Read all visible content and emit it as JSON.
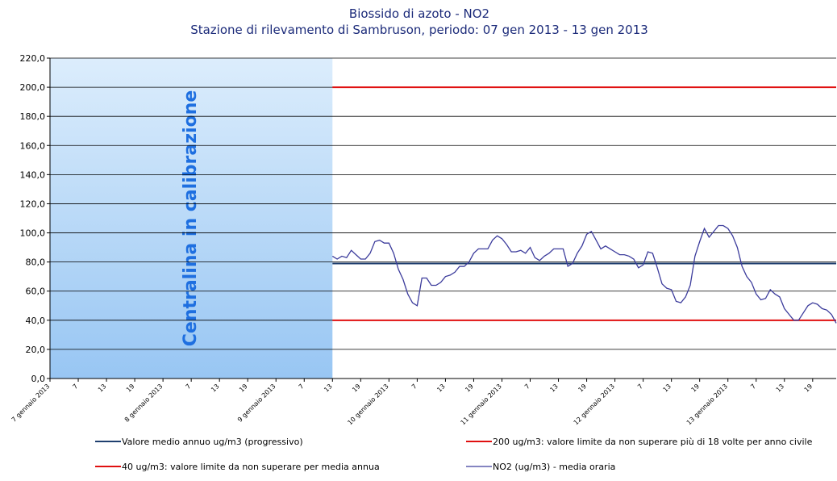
{
  "chart_data": {
    "type": "line",
    "title": "Biossido di azoto - NO2",
    "subtitle": "Stazione di rilevamento di Sambruson, periodo: 07 gen 2013 - 13 gen 2013",
    "annotation": "Centralina in calibrazione",
    "ylim": [
      0,
      220
    ],
    "yticks": [
      {
        "value": 0,
        "label": "0,0"
      },
      {
        "value": 20,
        "label": "20,0"
      },
      {
        "value": 40,
        "label": "40,0"
      },
      {
        "value": 60,
        "label": "60,0"
      },
      {
        "value": 80,
        "label": "80,0"
      },
      {
        "value": 100,
        "label": "100,0"
      },
      {
        "value": 120,
        "label": "120,0"
      },
      {
        "value": 140,
        "label": "140,0"
      },
      {
        "value": 160,
        "label": "160,0"
      },
      {
        "value": 180,
        "label": "180,0"
      },
      {
        "value": 200,
        "label": "200,0"
      },
      {
        "value": 220,
        "label": "220,0"
      }
    ],
    "grid": true,
    "categories": [
      "7 gennaio 2013",
      null,
      null,
      null,
      null,
      null,
      "7",
      null,
      null,
      null,
      null,
      null,
      "13",
      null,
      null,
      null,
      null,
      null,
      "19",
      null,
      null,
      null,
      null,
      null,
      "8 gennaio 2013",
      null,
      null,
      null,
      null,
      null,
      "7",
      null,
      null,
      null,
      null,
      null,
      "13",
      null,
      null,
      null,
      null,
      null,
      "19",
      null,
      null,
      null,
      null,
      null,
      "9 gennaio 2013",
      null,
      null,
      null,
      null,
      null,
      "7",
      null,
      null,
      null,
      null,
      null,
      "13",
      null,
      null,
      null,
      null,
      null,
      "19",
      null,
      null,
      null,
      null,
      null,
      "10 gennaio 2013",
      null,
      null,
      null,
      null,
      null,
      "7",
      null,
      null,
      null,
      null,
      null,
      "13",
      null,
      null,
      null,
      null,
      null,
      "19",
      null,
      null,
      null,
      null,
      null,
      "11 gennaio 2013",
      null,
      null,
      null,
      null,
      null,
      "7",
      null,
      null,
      null,
      null,
      null,
      "13",
      null,
      null,
      null,
      null,
      null,
      "19",
      null,
      null,
      null,
      null,
      null,
      "12 gennaio 2013",
      null,
      null,
      null,
      null,
      null,
      "7",
      null,
      null,
      null,
      null,
      null,
      "13",
      null,
      null,
      null,
      null,
      null,
      "19",
      null,
      null,
      null,
      null,
      null,
      "13 gennaio 2013",
      null,
      null,
      null,
      null,
      null,
      "7",
      null,
      null,
      null,
      null,
      null,
      "13",
      null,
      null,
      null,
      null,
      null,
      "19",
      null,
      null,
      null,
      null,
      null
    ],
    "series": [
      {
        "name": "Valore medio annuo ug/m3 (progressivo)",
        "color": "#1f3f6f",
        "values": [
          null,
          null,
          null,
          null,
          null,
          null,
          null,
          null,
          null,
          null,
          null,
          null,
          null,
          null,
          null,
          null,
          null,
          null,
          null,
          null,
          null,
          null,
          null,
          null,
          null,
          null,
          null,
          null,
          null,
          null,
          null,
          null,
          null,
          null,
          null,
          null,
          null,
          null,
          null,
          null,
          null,
          null,
          null,
          null,
          null,
          null,
          null,
          null,
          null,
          null,
          null,
          null,
          null,
          null,
          null,
          null,
          null,
          null,
          null,
          null,
          79,
          79,
          79,
          79,
          79,
          79,
          79,
          79,
          79,
          79,
          79,
          79,
          79,
          79,
          79,
          79,
          79,
          79,
          79,
          79,
          79,
          79,
          79,
          79,
          79,
          79,
          79,
          79,
          79,
          79,
          79,
          79,
          79,
          79,
          79,
          79,
          79,
          79,
          79,
          79,
          79,
          79,
          79,
          79,
          79,
          79,
          79,
          79,
          79,
          79,
          79,
          79,
          79,
          79,
          79,
          79,
          79,
          79,
          79,
          79,
          79,
          79,
          79,
          79,
          79,
          79,
          79,
          79,
          79,
          79,
          79,
          79,
          79,
          79,
          79,
          79,
          79,
          79,
          79,
          79,
          79,
          79,
          79,
          79,
          79,
          79,
          79,
          79,
          79,
          79,
          79,
          79,
          79,
          79,
          79,
          79,
          79,
          79,
          79,
          79,
          79,
          79,
          79,
          79,
          79,
          79,
          79,
          79
        ]
      },
      {
        "name": "200 ug/m3: valore limite da non superare più di 18 volte per anno civile",
        "color": "#e01010",
        "values": [
          null,
          null,
          null,
          null,
          null,
          null,
          null,
          null,
          null,
          null,
          null,
          null,
          null,
          null,
          null,
          null,
          null,
          null,
          null,
          null,
          null,
          null,
          null,
          null,
          null,
          null,
          null,
          null,
          null,
          null,
          null,
          null,
          null,
          null,
          null,
          null,
          null,
          null,
          null,
          null,
          null,
          null,
          null,
          null,
          null,
          null,
          null,
          null,
          null,
          null,
          null,
          null,
          null,
          null,
          null,
          null,
          null,
          null,
          null,
          null,
          200,
          200,
          200,
          200,
          200,
          200,
          200,
          200,
          200,
          200,
          200,
          200,
          200,
          200,
          200,
          200,
          200,
          200,
          200,
          200,
          200,
          200,
          200,
          200,
          200,
          200,
          200,
          200,
          200,
          200,
          200,
          200,
          200,
          200,
          200,
          200,
          200,
          200,
          200,
          200,
          200,
          200,
          200,
          200,
          200,
          200,
          200,
          200,
          200,
          200,
          200,
          200,
          200,
          200,
          200,
          200,
          200,
          200,
          200,
          200,
          200,
          200,
          200,
          200,
          200,
          200,
          200,
          200,
          200,
          200,
          200,
          200,
          200,
          200,
          200,
          200,
          200,
          200,
          200,
          200,
          200,
          200,
          200,
          200,
          200,
          200,
          200,
          200,
          200,
          200,
          200,
          200,
          200,
          200,
          200,
          200,
          200,
          200,
          200,
          200,
          200,
          200,
          200,
          200,
          200,
          200,
          200,
          200
        ]
      },
      {
        "name": "40 ug/m3: valore limite da non superare per media annua",
        "color": "#e01010",
        "values": [
          null,
          null,
          null,
          null,
          null,
          null,
          null,
          null,
          null,
          null,
          null,
          null,
          null,
          null,
          null,
          null,
          null,
          null,
          null,
          null,
          null,
          null,
          null,
          null,
          null,
          null,
          null,
          null,
          null,
          null,
          null,
          null,
          null,
          null,
          null,
          null,
          null,
          null,
          null,
          null,
          null,
          null,
          null,
          null,
          null,
          null,
          null,
          null,
          null,
          null,
          null,
          null,
          null,
          null,
          null,
          null,
          null,
          null,
          null,
          null,
          40,
          40,
          40,
          40,
          40,
          40,
          40,
          40,
          40,
          40,
          40,
          40,
          40,
          40,
          40,
          40,
          40,
          40,
          40,
          40,
          40,
          40,
          40,
          40,
          40,
          40,
          40,
          40,
          40,
          40,
          40,
          40,
          40,
          40,
          40,
          40,
          40,
          40,
          40,
          40,
          40,
          40,
          40,
          40,
          40,
          40,
          40,
          40,
          40,
          40,
          40,
          40,
          40,
          40,
          40,
          40,
          40,
          40,
          40,
          40,
          40,
          40,
          40,
          40,
          40,
          40,
          40,
          40,
          40,
          40,
          40,
          40,
          40,
          40,
          40,
          40,
          40,
          40,
          40,
          40,
          40,
          40,
          40,
          40,
          40,
          40,
          40,
          40,
          40,
          40,
          40,
          40,
          40,
          40,
          40,
          40,
          40,
          40,
          40,
          40,
          40,
          40,
          40,
          40,
          40,
          40,
          40,
          40
        ]
      },
      {
        "name": "NO2 (ug/m3)  - media oraria",
        "color": "#3c3c9c",
        "values": [
          null,
          null,
          null,
          null,
          null,
          null,
          null,
          null,
          null,
          null,
          null,
          null,
          null,
          null,
          null,
          null,
          null,
          null,
          null,
          null,
          null,
          null,
          null,
          null,
          null,
          null,
          null,
          null,
          null,
          null,
          null,
          null,
          null,
          null,
          null,
          null,
          null,
          null,
          null,
          null,
          null,
          null,
          null,
          null,
          null,
          null,
          null,
          null,
          null,
          null,
          null,
          null,
          null,
          null,
          null,
          null,
          null,
          null,
          null,
          null,
          84,
          82,
          84,
          83,
          88,
          85,
          82,
          82,
          86,
          94,
          95,
          93,
          93,
          86,
          75,
          68,
          58,
          52,
          50,
          69,
          69,
          64,
          64,
          66,
          70,
          71,
          73,
          77,
          77,
          80,
          86,
          89,
          89,
          89,
          95,
          98,
          96,
          92,
          87,
          87,
          88,
          86,
          90,
          83,
          81,
          84,
          86,
          89,
          89,
          89,
          77,
          79,
          86,
          91,
          99,
          101,
          95,
          89,
          91,
          89,
          87,
          85,
          85,
          84,
          82,
          76,
          78,
          87,
          86,
          76,
          65,
          62,
          61,
          53,
          52,
          56,
          64,
          84,
          94,
          103,
          97,
          101,
          105,
          105,
          103,
          98,
          90,
          77,
          70,
          66,
          58,
          54,
          55,
          61,
          58,
          56,
          48,
          44,
          40,
          40,
          45,
          50,
          52,
          51,
          48,
          47,
          44,
          38
        ]
      }
    ]
  }
}
